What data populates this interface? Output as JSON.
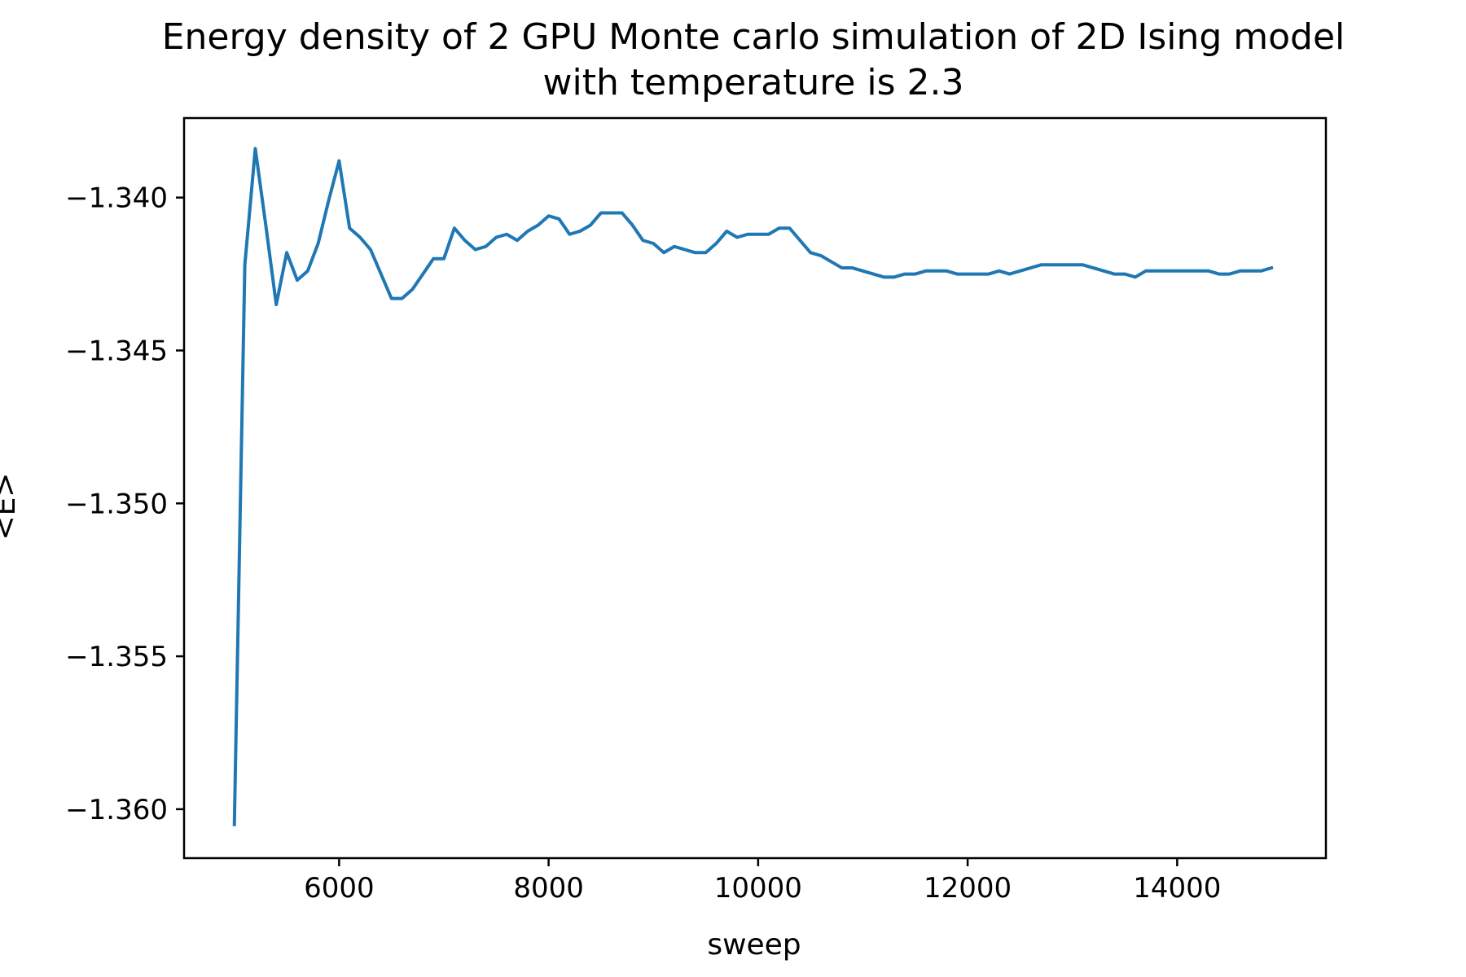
{
  "chart_data": {
    "type": "line",
    "title_lines": [
      "Energy density of 2 GPU Monte carlo simulation of 2D Ising model",
      "with temperature is 2.3"
    ],
    "xlabel": "sweep",
    "ylabel": "<E>",
    "xlim": [
      4520,
      15420
    ],
    "ylim": [
      -1.3616,
      -1.3374
    ],
    "x_ticks": [
      6000,
      8000,
      10000,
      12000,
      14000
    ],
    "y_ticks": [
      -1.34,
      -1.345,
      -1.35,
      -1.355,
      -1.36
    ],
    "x_tick_labels": [
      "6000",
      "8000",
      "10000",
      "12000",
      "14000"
    ],
    "y_tick_labels": [
      "−1.340",
      "−1.345",
      "−1.350",
      "−1.355",
      "−1.360"
    ],
    "grid": false,
    "legend": "none",
    "series": [
      {
        "color": "#1f77b4",
        "x": [
          5000,
          5100,
          5200,
          5300,
          5400,
          5500,
          5600,
          5700,
          5800,
          5900,
          6000,
          6100,
          6200,
          6300,
          6400,
          6500,
          6600,
          6700,
          6800,
          6900,
          7000,
          7100,
          7200,
          7300,
          7400,
          7500,
          7600,
          7700,
          7800,
          7900,
          8000,
          8100,
          8200,
          8300,
          8400,
          8500,
          8600,
          8700,
          8800,
          8900,
          9000,
          9100,
          9200,
          9300,
          9400,
          9500,
          9600,
          9700,
          9800,
          9900,
          10000,
          10100,
          10200,
          10300,
          10400,
          10500,
          10600,
          10700,
          10800,
          10900,
          11000,
          11100,
          11200,
          11300,
          11400,
          11500,
          11600,
          11700,
          11800,
          11900,
          12000,
          12100,
          12200,
          12300,
          12400,
          12500,
          12600,
          12700,
          12800,
          12900,
          13000,
          13100,
          13200,
          13300,
          13400,
          13500,
          13600,
          13700,
          13800,
          13900,
          14000,
          14100,
          14200,
          14300,
          14400,
          14500,
          14600,
          14700,
          14800,
          14900
        ],
        "y": [
          -1.3605,
          -1.3422,
          -1.3384,
          -1.3409,
          -1.3435,
          -1.3418,
          -1.3427,
          -1.3424,
          -1.3415,
          -1.3401,
          -1.3388,
          -1.341,
          -1.3413,
          -1.3417,
          -1.3425,
          -1.3433,
          -1.3433,
          -1.343,
          -1.3425,
          -1.342,
          -1.342,
          -1.341,
          -1.3414,
          -1.3417,
          -1.3416,
          -1.3413,
          -1.3412,
          -1.3414,
          -1.3411,
          -1.3409,
          -1.3406,
          -1.3407,
          -1.3412,
          -1.3411,
          -1.3409,
          -1.3405,
          -1.3405,
          -1.3405,
          -1.3409,
          -1.3414,
          -1.3415,
          -1.3418,
          -1.3416,
          -1.3417,
          -1.3418,
          -1.3418,
          -1.3415,
          -1.3411,
          -1.3413,
          -1.3412,
          -1.3412,
          -1.3412,
          -1.341,
          -1.341,
          -1.3414,
          -1.3418,
          -1.3419,
          -1.3421,
          -1.3423,
          -1.3423,
          -1.3424,
          -1.3425,
          -1.3426,
          -1.3426,
          -1.3425,
          -1.3425,
          -1.3424,
          -1.3424,
          -1.3424,
          -1.3425,
          -1.3425,
          -1.3425,
          -1.3425,
          -1.3424,
          -1.3425,
          -1.3424,
          -1.3423,
          -1.3422,
          -1.3422,
          -1.3422,
          -1.3422,
          -1.3422,
          -1.3423,
          -1.3424,
          -1.3425,
          -1.3425,
          -1.3426,
          -1.3424,
          -1.3424,
          -1.3424,
          -1.3424,
          -1.3424,
          -1.3424,
          -1.3424,
          -1.3425,
          -1.3425,
          -1.3424,
          -1.3424,
          -1.3424,
          -1.3423
        ]
      }
    ]
  }
}
